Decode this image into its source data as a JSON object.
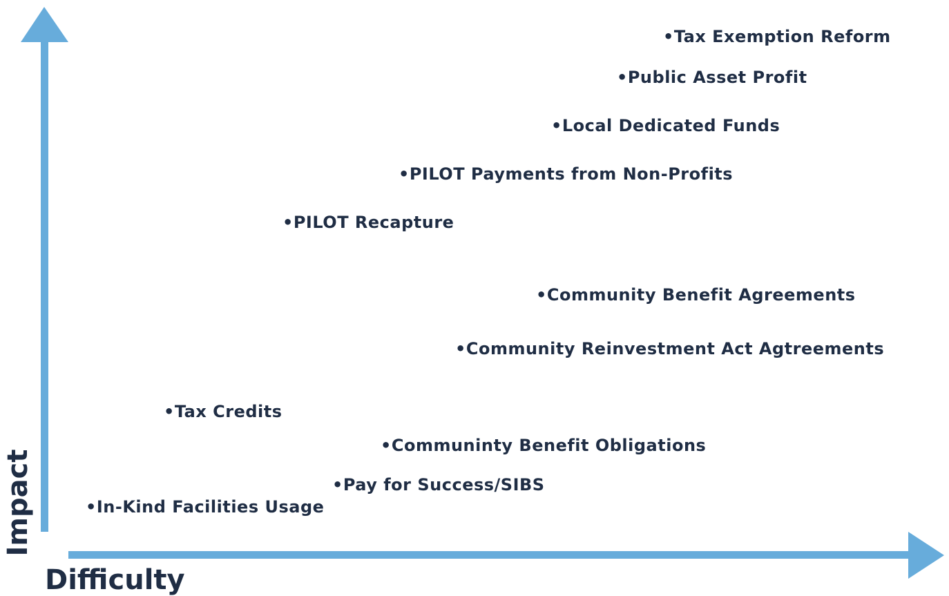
{
  "axes": {
    "y_label": "Impact",
    "x_label": "Difficulty"
  },
  "items": [
    {
      "label": "•Tax Exemption Reform"
    },
    {
      "label": "•Public Asset Profit"
    },
    {
      "label": "•Local Dedicated Funds"
    },
    {
      "label": "•PILOT Payments from Non-Profits"
    },
    {
      "label": "•PILOT Recapture"
    },
    {
      "label": "•Community Benefit Agreements"
    },
    {
      "label": "•Community Reinvestment Act Agtreements"
    },
    {
      "label": "•Tax Credits"
    },
    {
      "label": "•Communinty Benefit Obligations"
    },
    {
      "label": "•Pay for Success/SIBS"
    },
    {
      "label": "•In-Kind Facilities Usage"
    }
  ]
}
